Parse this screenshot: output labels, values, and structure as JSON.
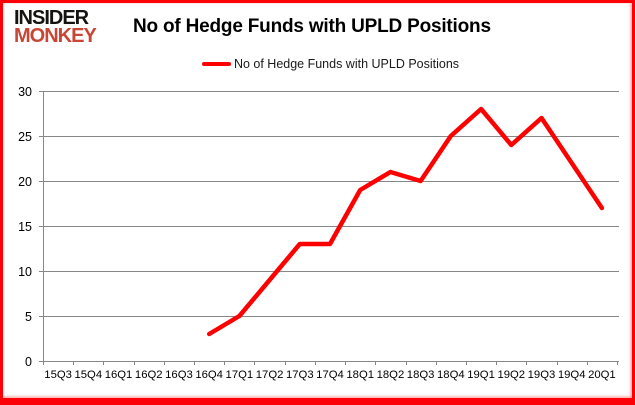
{
  "logo": {
    "line1": "INSIDER",
    "line2": "MONKEY"
  },
  "header": {
    "title": "No of Hedge Funds with UPLD Positions"
  },
  "legend": {
    "label": "No of Hedge Funds with UPLD Positions"
  },
  "colors": {
    "line": "#ff0000",
    "frame_border": "#fb0006",
    "grid": "#878787",
    "axis": "#878787",
    "tick_label": "#000000",
    "logo_black": "#151311",
    "logo_accent": "#c74634",
    "background": "#ffffff"
  },
  "chart_data": {
    "type": "line",
    "title": "No of Hedge Funds with UPLD Positions",
    "xlabel": "",
    "ylabel": "",
    "categories": [
      "15Q3",
      "15Q4",
      "16Q1",
      "16Q2",
      "16Q3",
      "16Q4",
      "17Q1",
      "17Q2",
      "17Q3",
      "17Q4",
      "18Q1",
      "18Q2",
      "18Q3",
      "18Q4",
      "19Q1",
      "19Q2",
      "19Q3",
      "19Q4",
      "20Q1"
    ],
    "series": [
      {
        "name": "No of Hedge Funds with UPLD Positions",
        "color": "#ff0000",
        "values": [
          null,
          null,
          null,
          null,
          null,
          3,
          5,
          9,
          13,
          13,
          19,
          21,
          20,
          25,
          28,
          24,
          27,
          22,
          17
        ]
      }
    ],
    "ylim": [
      0,
      30
    ],
    "yticks": [
      0,
      5,
      10,
      15,
      20,
      25,
      30
    ],
    "grid": true,
    "legend_position": "top-center"
  }
}
